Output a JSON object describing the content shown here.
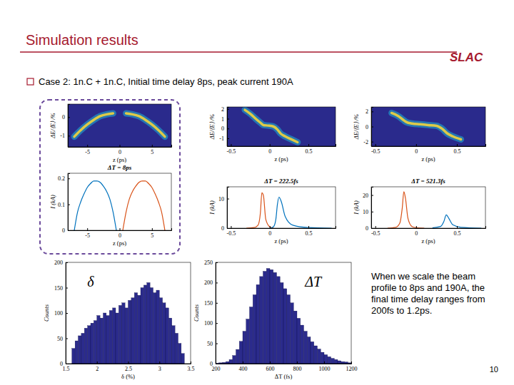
{
  "slide": {
    "title": "Simulation results",
    "logo": "SLAC",
    "bullet": "Case 2: 1n.C + 1n.C, Initial time delay 8ps, peak current 190A",
    "note": "When we scale the beam profile to 8ps and 190A, the final time delay ranges from 200fs to 1.2ps.",
    "page_number": 10
  },
  "chart_data": [
    {
      "type": "phase_space",
      "xlabel": "z (ps)",
      "ylabel": "ΔE/⟨E⟩ /%",
      "xlim": [
        -8,
        8
      ],
      "ylim": [
        -1.6,
        0.7
      ],
      "xticks": [
        -5,
        0,
        5
      ],
      "yticks": [
        -1,
        0
      ],
      "series": [
        {
          "color": "#f2d43c",
          "x": [
            -7,
            -6,
            -5,
            -4,
            -3,
            -2,
            -1
          ],
          "values": [
            -1.05,
            -0.7,
            -0.4,
            -0.15,
            0.05,
            0.15,
            0.2
          ]
        },
        {
          "color": "#f2d43c",
          "x": [
            1,
            2,
            3,
            4,
            5,
            6,
            7
          ],
          "values": [
            0.2,
            0.15,
            0.05,
            -0.15,
            -0.4,
            -0.7,
            -1.05
          ]
        }
      ]
    },
    {
      "type": "phase_space",
      "xlabel": "z (ps)",
      "ylabel": "ΔE/⟨E⟩ /%",
      "xlim": [
        -0.55,
        0.85
      ],
      "ylim": [
        -1.8,
        2.2
      ],
      "xticks": [
        -0.5,
        0,
        0.5
      ],
      "yticks": [
        -1,
        0,
        1,
        2
      ],
      "series": [
        {
          "color": "#f2d43c",
          "x": [
            -0.32,
            -0.25,
            -0.18,
            -0.12,
            -0.08,
            -0.02,
            0.05,
            0.1,
            0.14,
            0.2,
            0.28,
            0.36
          ],
          "values": [
            1.9,
            1.5,
            1.0,
            0.6,
            0.35,
            0.3,
            0.2,
            -0.1,
            -0.5,
            -0.8,
            -1.1,
            -1.4
          ]
        }
      ]
    },
    {
      "type": "phase_space",
      "xlabel": "z (ps)",
      "ylabel": "ΔE/⟨E⟩ /%",
      "xlim": [
        -0.55,
        0.85
      ],
      "ylim": [
        -2.6,
        2.6
      ],
      "xticks": [
        -0.5,
        0,
        0.5
      ],
      "yticks": [
        -2,
        0,
        2
      ],
      "series": [
        {
          "color": "#f2d43c",
          "x": [
            -0.3,
            -0.22,
            -0.16,
            -0.12,
            -0.05,
            0.05,
            0.15,
            0.25,
            0.32,
            0.38,
            0.45,
            0.55
          ],
          "values": [
            1.8,
            1.4,
            0.9,
            0.6,
            0.4,
            0.3,
            0.2,
            0.1,
            -0.3,
            -0.9,
            -1.3,
            -1.7
          ]
        }
      ]
    },
    {
      "type": "line",
      "title": "ΔT = 8ps",
      "xlabel": "z (ps)",
      "ylabel": "I (kA)",
      "xlim": [
        -8,
        8
      ],
      "ylim": [
        0,
        0.22
      ],
      "xticks": [
        -5,
        0,
        5
      ],
      "yticks": [
        0,
        0.1,
        0.2
      ],
      "series": [
        {
          "color": "#0072bd",
          "x": [
            -7,
            -6.5,
            -6,
            -5.5,
            -5,
            -4.5,
            -4,
            -3.5,
            -3,
            -2.5,
            -2,
            -1.5,
            -1,
            -0.5
          ],
          "values": [
            0,
            0.07,
            0.11,
            0.14,
            0.165,
            0.18,
            0.19,
            0.19,
            0.185,
            0.17,
            0.15,
            0.12,
            0.07,
            0
          ]
        },
        {
          "color": "#d95319",
          "x": [
            0.5,
            1,
            1.5,
            2,
            2.5,
            3,
            3.5,
            4,
            4.5,
            5,
            5.5,
            6,
            6.5,
            7
          ],
          "values": [
            0,
            0.07,
            0.12,
            0.15,
            0.17,
            0.185,
            0.19,
            0.19,
            0.18,
            0.165,
            0.14,
            0.11,
            0.07,
            0
          ]
        }
      ]
    },
    {
      "type": "line",
      "title": "ΔT = 222.5fs",
      "xlabel": "z (ps)",
      "ylabel": "I (kA)",
      "xlim": [
        -0.55,
        0.85
      ],
      "ylim": [
        0,
        14
      ],
      "xticks": [
        -0.5,
        0,
        0.5
      ],
      "yticks": [
        0,
        10
      ],
      "series": [
        {
          "color": "#d95319",
          "x": [
            -0.3,
            -0.2,
            -0.15,
            -0.12,
            -0.1,
            -0.08,
            -0.05,
            0,
            0.05
          ],
          "values": [
            0,
            0.2,
            1,
            5,
            12,
            11,
            3,
            0.5,
            0
          ]
        },
        {
          "color": "#0072bd",
          "x": [
            0,
            0.05,
            0.08,
            0.1,
            0.12,
            0.15,
            0.2,
            0.3,
            0.5,
            0.8
          ],
          "values": [
            0,
            0.5,
            3,
            8,
            10.5,
            9,
            4,
            1,
            0.2,
            0
          ]
        }
      ]
    },
    {
      "type": "line",
      "title": "ΔT = 521.3fs",
      "xlabel": "z (ps)",
      "ylabel": "I (kA)",
      "xlim": [
        -0.55,
        0.85
      ],
      "ylim": [
        0,
        25
      ],
      "xticks": [
        -0.5,
        0,
        0.5
      ],
      "yticks": [
        0,
        10,
        20
      ],
      "series": [
        {
          "color": "#d95319",
          "x": [
            -0.35,
            -0.25,
            -0.2,
            -0.17,
            -0.15,
            -0.13,
            -0.1,
            -0.05,
            0,
            0.1
          ],
          "values": [
            0,
            0.5,
            3,
            12,
            22,
            18,
            6,
            1,
            0.3,
            0
          ]
        },
        {
          "color": "#0072bd",
          "x": [
            0.2,
            0.3,
            0.34,
            0.37,
            0.4,
            0.45,
            0.55,
            0.8
          ],
          "values": [
            0.2,
            1,
            4,
            8,
            6,
            2,
            0.5,
            0
          ]
        }
      ]
    },
    {
      "type": "histogram",
      "annotation": "δ",
      "xlabel": "δ (%)",
      "ylabel": "Counts",
      "color": "#2b2b8c",
      "xlim": [
        1.5,
        3.5
      ],
      "ylim": [
        0,
        200
      ],
      "xticks": [
        1.5,
        2,
        2.5,
        3,
        3.5
      ],
      "yticks": [
        0,
        50,
        100,
        150,
        200
      ],
      "bins": [
        1.6,
        1.65,
        1.7,
        1.75,
        1.8,
        1.85,
        1.9,
        1.95,
        2,
        2.05,
        2.1,
        2.15,
        2.2,
        2.25,
        2.3,
        2.35,
        2.4,
        2.45,
        2.5,
        2.55,
        2.6,
        2.65,
        2.7,
        2.75,
        2.8,
        2.85,
        2.9,
        2.95,
        3,
        3.05,
        3.1,
        3.15,
        3.2,
        3.25,
        3.3,
        3.35,
        3.4
      ],
      "counts": [
        30,
        45,
        55,
        60,
        70,
        75,
        80,
        85,
        95,
        90,
        100,
        95,
        105,
        110,
        100,
        115,
        120,
        110,
        125,
        130,
        140,
        135,
        150,
        155,
        160,
        150,
        140,
        145,
        130,
        120,
        110,
        90,
        75,
        60,
        40,
        20
      ]
    },
    {
      "type": "histogram",
      "annotation": "ΔT",
      "xlabel": "ΔT (fs)",
      "ylabel": "Counts",
      "color": "#2b2b8c",
      "xlim": [
        200,
        1200
      ],
      "ylim": [
        0,
        250
      ],
      "xticks": [
        200,
        400,
        600,
        800,
        1000,
        1200
      ],
      "yticks": [
        0,
        50,
        100,
        150,
        200,
        250
      ],
      "bins": [
        200,
        225,
        250,
        275,
        300,
        325,
        350,
        375,
        400,
        425,
        450,
        475,
        500,
        525,
        550,
        575,
        600,
        625,
        650,
        675,
        700,
        725,
        750,
        775,
        800,
        825,
        850,
        875,
        900,
        925,
        950,
        975,
        1000,
        1025,
        1050,
        1075,
        1100,
        1125,
        1150,
        1175,
        1200
      ],
      "counts": [
        1,
        2,
        3,
        5,
        10,
        20,
        35,
        55,
        80,
        110,
        140,
        170,
        195,
        215,
        228,
        235,
        232,
        225,
        215,
        200,
        185,
        170,
        150,
        130,
        112,
        95,
        80,
        66,
        54,
        44,
        36,
        28,
        22,
        17,
        13,
        10,
        7,
        5,
        4,
        2
      ]
    }
  ]
}
